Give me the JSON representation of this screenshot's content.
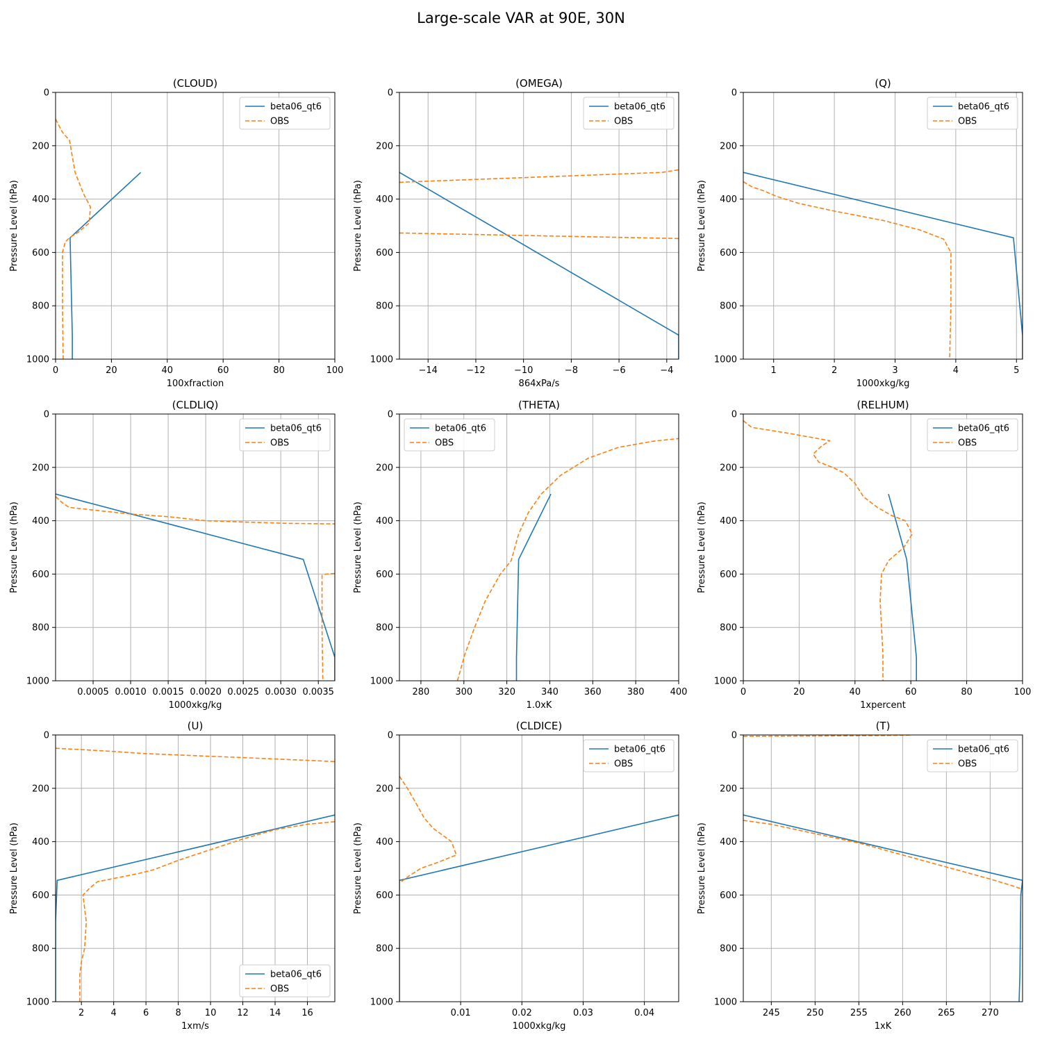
{
  "figure": {
    "title": "Large-scale VAR at 90E, 30N"
  },
  "colors": {
    "model": "#1f77b4",
    "obs": "#ff7f0e",
    "grid": "#b0b0b0"
  },
  "chart_data": [
    {
      "type": "line",
      "title": "(CLOUD)",
      "xlabel": "100xfraction",
      "ylabel": "Pressure Level (hPa)",
      "xlim": [
        0,
        100
      ],
      "ylim": [
        1000,
        0
      ],
      "y_inverted": true,
      "grid": true,
      "xticks": [
        0,
        20,
        40,
        60,
        80,
        100
      ],
      "yticks": [
        0,
        200,
        400,
        600,
        800,
        1000
      ],
      "legend": "top-right",
      "series": [
        {
          "name": "beta06_qt6",
          "style": "solid",
          "points": [
            [
              30.5,
              300
            ],
            [
              5.2,
              545
            ],
            [
              6.0,
              912
            ],
            [
              6.0,
              1000
            ]
          ]
        },
        {
          "name": "OBS",
          "style": "dashed",
          "points": [
            [
              0,
              100
            ],
            [
              2.5,
              150
            ],
            [
              5,
              180
            ],
            [
              7,
              300
            ],
            [
              10,
              380
            ],
            [
              12.5,
              430
            ],
            [
              12,
              490
            ],
            [
              8,
              525
            ],
            [
              5,
              545
            ],
            [
              3.5,
              560
            ],
            [
              2.5,
              600
            ],
            [
              2.5,
              800
            ],
            [
              2.7,
              1000
            ]
          ]
        }
      ]
    },
    {
      "type": "line",
      "title": "(OMEGA)",
      "xlabel": "864xPa/s",
      "ylabel": "Pressure Level (hPa)",
      "xlim": [
        -15.2,
        -3.5
      ],
      "ylim": [
        1000,
        0
      ],
      "y_inverted": true,
      "grid": true,
      "xticks": [
        -14,
        -12,
        -10,
        -8,
        -6,
        -4
      ],
      "xtick_labels": [
        "−14",
        "−12",
        "−10",
        "−8",
        "−6",
        "−4"
      ],
      "yticks": [
        0,
        200,
        400,
        600,
        800,
        1000
      ],
      "legend": "top-right",
      "series": [
        {
          "name": "beta06_qt6",
          "style": "solid",
          "points": [
            [
              -15.2,
              300
            ],
            [
              -3.5,
              910
            ],
            [
              -3.5,
              1000
            ]
          ]
        },
        {
          "name": "OBS",
          "style": "dashed",
          "points": [
            [
              -15.2,
              337
            ],
            [
              -4.2,
              300
            ],
            [
              -3.5,
              290
            ]
          ]
        },
        {
          "style": "dashed",
          "points": [
            [
              -15.2,
              527
            ],
            [
              -3.5,
              548
            ]
          ]
        }
      ]
    },
    {
      "type": "line",
      "title": "(Q)",
      "xlabel": "1000xkg/kg",
      "ylabel": "Pressure Level (hPa)",
      "xlim": [
        0.5,
        5.1
      ],
      "ylim": [
        1000,
        0
      ],
      "y_inverted": true,
      "grid": true,
      "xticks": [
        1,
        2,
        3,
        4,
        5
      ],
      "yticks": [
        0,
        200,
        400,
        600,
        800,
        1000
      ],
      "legend": "top-right",
      "series": [
        {
          "name": "beta06_qt6",
          "style": "solid",
          "points": [
            [
              0.5,
              300
            ],
            [
              4.95,
              545
            ],
            [
              5.1,
              912
            ],
            [
              5.1,
              1000
            ]
          ]
        },
        {
          "name": "OBS",
          "style": "dashed",
          "points": [
            [
              0.5,
              335
            ],
            [
              0.65,
              355
            ],
            [
              0.85,
              370
            ],
            [
              1.05,
              390
            ],
            [
              1.4,
              415
            ],
            [
              2.0,
              445
            ],
            [
              2.8,
              480
            ],
            [
              3.4,
              515
            ],
            [
              3.8,
              550
            ],
            [
              3.92,
              600
            ],
            [
              3.92,
              800
            ],
            [
              3.9,
              1000
            ]
          ]
        }
      ]
    },
    {
      "type": "line",
      "title": "(CLDLIQ)",
      "xlabel": "1000xkg/kg",
      "ylabel": "Pressure Level (hPa)",
      "xlim": [
        0.0,
        0.00372
      ],
      "ylim": [
        1000,
        0
      ],
      "y_inverted": true,
      "grid": true,
      "xticks": [
        0.0005,
        0.001,
        0.0015,
        0.002,
        0.0025,
        0.003,
        0.0035
      ],
      "xtick_labels": [
        "0.0005",
        "0.0010",
        "0.0015",
        "0.0020",
        "0.0025",
        "0.0030",
        "0.0035"
      ],
      "yticks": [
        0,
        200,
        400,
        600,
        800,
        1000
      ],
      "legend": "top-right",
      "series": [
        {
          "name": "beta06_qt6",
          "style": "solid",
          "points": [
            [
              0.0,
              300
            ],
            [
              0.0033,
              545
            ],
            [
              0.00372,
              912
            ],
            [
              0.00372,
              1000
            ]
          ]
        },
        {
          "name": "OBS",
          "style": "dashed",
          "points": [
            [
              0.0,
              310
            ],
            [
              0.0001,
              335
            ],
            [
              0.00018,
              350
            ],
            [
              0.0005,
              360
            ],
            [
              0.001,
              375
            ],
            [
              0.0015,
              385
            ],
            [
              0.002,
              400
            ],
            [
              0.0025,
              405
            ],
            [
              0.0031,
              410
            ],
            [
              0.00372,
              412
            ]
          ]
        },
        {
          "style": "dashed",
          "points": [
            [
              0.00372,
              598
            ],
            [
              0.0036,
              600
            ],
            [
              0.00355,
              605
            ],
            [
              0.00355,
              800
            ],
            [
              0.00356,
              1000
            ]
          ]
        }
      ]
    },
    {
      "type": "line",
      "title": "(THETA)",
      "xlabel": "1.0xK",
      "ylabel": "Pressure Level (hPa)",
      "xlim": [
        270,
        400
      ],
      "ylim": [
        1000,
        0
      ],
      "y_inverted": true,
      "grid": true,
      "xticks": [
        280,
        300,
        320,
        340,
        360,
        380,
        400
      ],
      "yticks": [
        0,
        200,
        400,
        600,
        800,
        1000
      ],
      "legend": "top-left",
      "series": [
        {
          "name": "beta06_qt6",
          "style": "solid",
          "points": [
            [
              340.5,
              300
            ],
            [
              325.5,
              545
            ],
            [
              324.5,
              912
            ],
            [
              324.5,
              1000
            ]
          ]
        },
        {
          "name": "OBS",
          "style": "dashed",
          "points": [
            [
              297,
              1000
            ],
            [
              300.5,
              900
            ],
            [
              305,
              800
            ],
            [
              310,
              700
            ],
            [
              317,
              600
            ],
            [
              322,
              550
            ],
            [
              325.5,
              450
            ],
            [
              330,
              370
            ],
            [
              336,
              300
            ],
            [
              345,
              230
            ],
            [
              358,
              165
            ],
            [
              372,
              125
            ],
            [
              388,
              102
            ],
            [
              400,
              92
            ]
          ]
        }
      ]
    },
    {
      "type": "line",
      "title": "(RELHUM)",
      "xlabel": "1xpercent",
      "ylabel": "Pressure Level (hPa)",
      "xlim": [
        0,
        100
      ],
      "ylim": [
        1000,
        0
      ],
      "y_inverted": true,
      "grid": true,
      "xticks": [
        0,
        20,
        40,
        60,
        80,
        100
      ],
      "yticks": [
        0,
        200,
        400,
        600,
        800,
        1000
      ],
      "legend": "top-right",
      "series": [
        {
          "name": "beta06_qt6",
          "style": "solid",
          "points": [
            [
              52,
              300
            ],
            [
              58.5,
              545
            ],
            [
              62,
              912
            ],
            [
              62,
              1000
            ]
          ]
        },
        {
          "name": "OBS",
          "style": "dashed",
          "points": [
            [
              0,
              25
            ],
            [
              3,
              50
            ],
            [
              15,
              70
            ],
            [
              31,
              100
            ],
            [
              28,
              120
            ],
            [
              25,
              150
            ],
            [
              27,
              180
            ],
            [
              32,
              200
            ],
            [
              36,
              220
            ],
            [
              40,
              260
            ],
            [
              43,
              310
            ],
            [
              48,
              350
            ],
            [
              53,
              380
            ],
            [
              58,
              400
            ],
            [
              60.5,
              450
            ],
            [
              57.5,
              500
            ],
            [
              52,
              550
            ],
            [
              49.5,
              600
            ],
            [
              49,
              700
            ],
            [
              49.5,
              800
            ],
            [
              50,
              900
            ],
            [
              50,
              1000
            ]
          ]
        }
      ]
    },
    {
      "type": "line",
      "title": "(U)",
      "xlabel": "1xm/s",
      "ylabel": "Pressure Level (hPa)",
      "xlim": [
        0.4,
        17.7
      ],
      "ylim": [
        1000,
        0
      ],
      "y_inverted": true,
      "grid": true,
      "xticks": [
        2,
        4,
        6,
        8,
        10,
        12,
        14,
        16
      ],
      "yticks": [
        0,
        200,
        400,
        600,
        800,
        1000
      ],
      "legend": "bottom-right",
      "series": [
        {
          "name": "beta06_qt6",
          "style": "solid",
          "points": [
            [
              17.7,
              300
            ],
            [
              0.5,
              545
            ],
            [
              0.4,
              700
            ],
            [
              0.4,
              1000
            ]
          ]
        },
        {
          "name": "OBS",
          "style": "dashed",
          "points": [
            [
              0.4,
              50
            ],
            [
              2,
              55
            ],
            [
              4,
              62
            ],
            [
              6,
              70
            ],
            [
              8,
              75
            ],
            [
              10,
              80
            ],
            [
              12,
              85
            ],
            [
              14,
              90
            ],
            [
              16,
              95
            ],
            [
              17.7,
              100
            ]
          ]
        },
        {
          "style": "dashed",
          "points": [
            [
              17.7,
              325
            ],
            [
              16,
              335
            ],
            [
              14,
              355
            ],
            [
              12,
              390
            ],
            [
              10,
              430
            ],
            [
              8,
              470
            ],
            [
              6.5,
              505
            ],
            [
              5.5,
              520
            ],
            [
              3,
              550
            ],
            [
              2.5,
              575
            ],
            [
              2.1,
              600
            ],
            [
              2.3,
              700
            ],
            [
              2.2,
              800
            ],
            [
              2.0,
              850
            ],
            [
              1.9,
              900
            ],
            [
              1.9,
              1000
            ]
          ]
        }
      ]
    },
    {
      "type": "line",
      "title": "(CLDICE)",
      "xlabel": "1000xkg/kg",
      "ylabel": "Pressure Level (hPa)",
      "xlim": [
        0.0,
        0.0456
      ],
      "ylim": [
        1000,
        0
      ],
      "y_inverted": true,
      "grid": true,
      "xticks": [
        0.01,
        0.02,
        0.03,
        0.04
      ],
      "yticks": [
        0,
        200,
        400,
        600,
        800,
        1000
      ],
      "legend": "top-right",
      "series": [
        {
          "name": "beta06_qt6",
          "style": "solid",
          "points": [
            [
              0.0456,
              300
            ],
            [
              0.0,
              545
            ],
            [
              0.0,
              1000
            ]
          ]
        },
        {
          "name": "OBS",
          "style": "dashed",
          "points": [
            [
              0.0,
              155
            ],
            [
              0.0013,
              200
            ],
            [
              0.0028,
              260
            ],
            [
              0.004,
              310
            ],
            [
              0.0055,
              350
            ],
            [
              0.0085,
              400
            ],
            [
              0.0093,
              450
            ],
            [
              0.006,
              480
            ],
            [
              0.0035,
              500
            ],
            [
              0.0015,
              530
            ],
            [
              0.0,
              555
            ]
          ]
        }
      ]
    },
    {
      "type": "line",
      "title": "(T)",
      "xlabel": "1xK",
      "ylabel": "Pressure Level (hPa)",
      "xlim": [
        241.8,
        273.7
      ],
      "ylim": [
        1000,
        0
      ],
      "y_inverted": true,
      "grid": true,
      "xticks": [
        245,
        250,
        255,
        260,
        265,
        270
      ],
      "yticks": [
        0,
        200,
        400,
        600,
        800,
        1000
      ],
      "legend": "top-right",
      "series": [
        {
          "name": "beta06_qt6",
          "style": "solid",
          "points": [
            [
              241.8,
              300
            ],
            [
              273.7,
              545
            ],
            [
              273.5,
              600
            ],
            [
              273.4,
              900
            ],
            [
              273.3,
              1000
            ]
          ]
        },
        {
          "name": "OBS",
          "style": "dashed",
          "points": [
            [
              241.8,
              320
            ],
            [
              245,
              335
            ],
            [
              250,
              370
            ],
            [
              255,
              405
            ],
            [
              260,
              450
            ],
            [
              265,
              495
            ],
            [
              270,
              540
            ],
            [
              272,
              560
            ],
            [
              273.7,
              578
            ]
          ]
        },
        {
          "style": "dashed",
          "points": [
            [
              241.8,
              5
            ],
            [
              250,
              4
            ],
            [
              258,
              2
            ],
            [
              261,
              0
            ]
          ]
        }
      ]
    }
  ]
}
